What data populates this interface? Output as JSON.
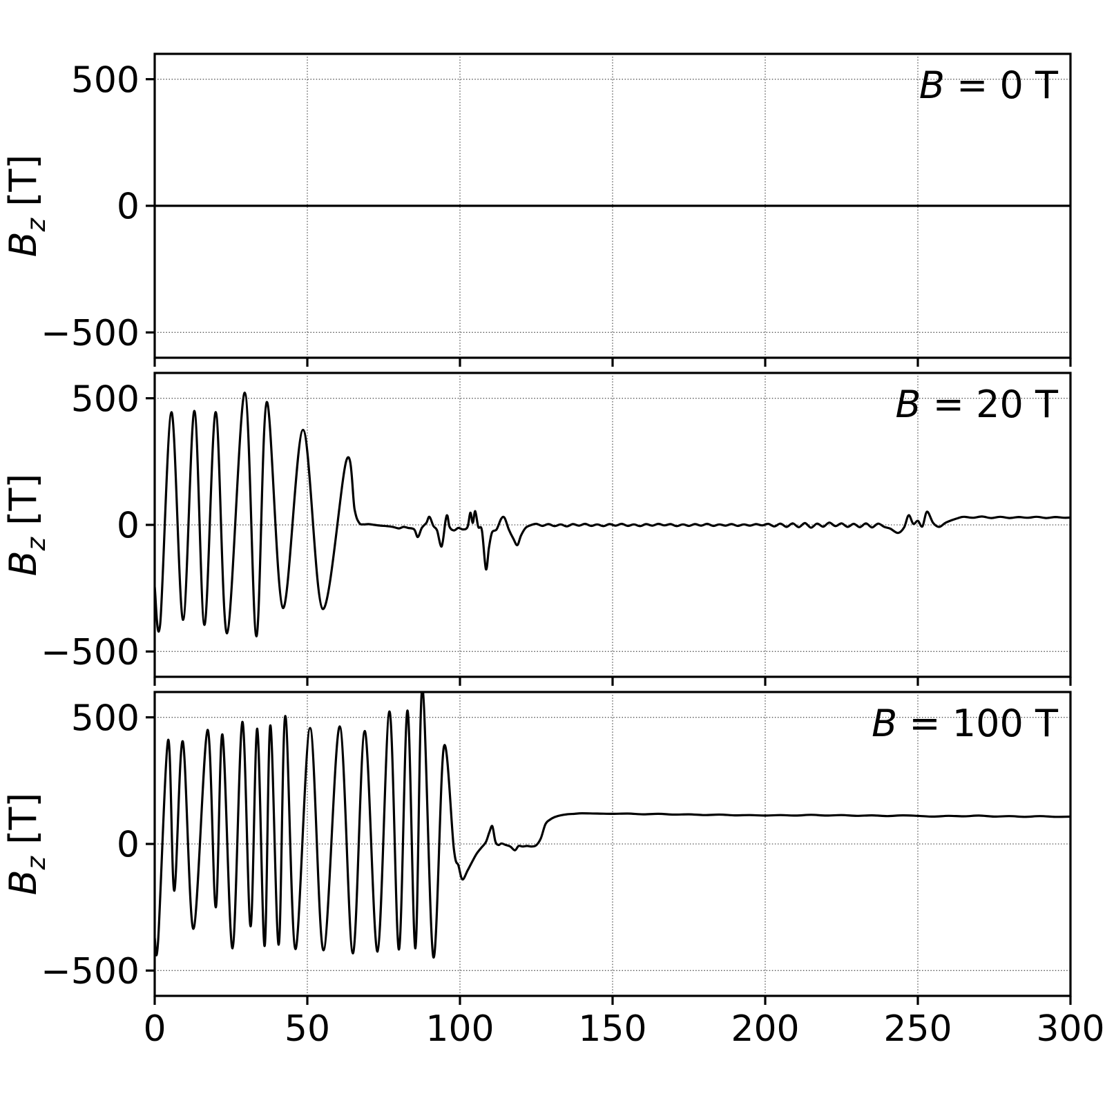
{
  "figure": {
    "background": "#ffffff",
    "line_color": "#000000",
    "grid_color": "#555555",
    "spine_color": "#000000"
  },
  "chart_data": {
    "type": "line",
    "layout": "3 vertically stacked subplots sharing one x-axis",
    "title": "",
    "xlabel": "",
    "x_axis": {
      "range": [
        0,
        300
      ],
      "ticks": [
        0,
        50,
        100,
        150,
        200,
        250,
        300
      ],
      "tick_labels": [
        "0",
        "50",
        "100",
        "150",
        "200",
        "250",
        "300"
      ]
    },
    "y_axis": {
      "range": [
        -600,
        600
      ],
      "ticks": [
        500,
        0,
        -500
      ],
      "tick_labels": [
        "500",
        "0",
        "−500"
      ],
      "label": "Bz [T]"
    },
    "grid": true,
    "legend": "none",
    "panels": [
      {
        "id": "b-0t",
        "annotation": {
          "symbol": "B",
          "rest": " = 0 T"
        },
        "ylabel": {
          "symbol": "B",
          "sub": "z",
          "rest": " [T]"
        },
        "series": {
          "name": "B = 0 T",
          "points": [
            [
              0,
              0
            ],
            [
              300,
              0
            ]
          ]
        }
      },
      {
        "id": "b-20t",
        "annotation": {
          "symbol": "B",
          "rest": " = 20 T"
        },
        "ylabel": {
          "symbol": "B",
          "sub": "z",
          "rest": " [T]"
        },
        "series": {
          "name": "B = 20 T",
          "points": [
            [
              0,
              -245
            ],
            [
              1.8,
              -390
            ],
            [
              5.5,
              445
            ],
            [
              9.3,
              -375
            ],
            [
              13,
              450
            ],
            [
              16.3,
              -395
            ],
            [
              20,
              445
            ],
            [
              23.7,
              -428
            ],
            [
              29.5,
              522
            ],
            [
              33.3,
              -440
            ],
            [
              36.7,
              485
            ],
            [
              42,
              -328
            ],
            [
              48.6,
              375
            ],
            [
              55,
              -332
            ],
            [
              62.8,
              255
            ],
            [
              65.5,
              60
            ],
            [
              67,
              8
            ],
            [
              68.5,
              2
            ],
            [
              70,
              3
            ],
            [
              72,
              0
            ],
            [
              74,
              -3
            ],
            [
              76,
              -5
            ],
            [
              78,
              -8
            ],
            [
              80,
              -14
            ],
            [
              81.5,
              -8
            ],
            [
              83,
              -12
            ],
            [
              85,
              -18
            ],
            [
              86.2,
              -48
            ],
            [
              87.5,
              -12
            ],
            [
              89,
              8
            ],
            [
              90,
              32
            ],
            [
              91.3,
              -4
            ],
            [
              92.5,
              -22
            ],
            [
              94,
              -85
            ],
            [
              95.3,
              18
            ],
            [
              95.9,
              36
            ],
            [
              96.6,
              -8
            ],
            [
              98,
              -22
            ],
            [
              99.5,
              -12
            ],
            [
              101,
              -18
            ],
            [
              102.5,
              -8
            ],
            [
              103.4,
              48
            ],
            [
              104.2,
              8
            ],
            [
              105,
              54
            ],
            [
              106,
              -8
            ],
            [
              107.2,
              -22
            ],
            [
              108.5,
              -175
            ],
            [
              109.5,
              -90
            ],
            [
              110.5,
              -30
            ],
            [
              112,
              -18
            ],
            [
              113.5,
              24
            ],
            [
              114.6,
              28
            ],
            [
              116,
              -18
            ],
            [
              117.5,
              -55
            ],
            [
              118.8,
              -80
            ],
            [
              120,
              -42
            ],
            [
              121.5,
              -12
            ],
            [
              123,
              -2
            ],
            [
              125,
              4
            ],
            [
              127,
              -4
            ],
            [
              129,
              3
            ],
            [
              131,
              -5
            ],
            [
              133,
              2
            ],
            [
              135,
              -6
            ],
            [
              137,
              3
            ],
            [
              139,
              -3
            ],
            [
              141,
              4
            ],
            [
              143,
              -4
            ],
            [
              145,
              2
            ],
            [
              147,
              -5
            ],
            [
              149,
              3
            ],
            [
              151,
              -3
            ],
            [
              153,
              4
            ],
            [
              155,
              -4
            ],
            [
              157,
              2
            ],
            [
              159,
              -5
            ],
            [
              161,
              3
            ],
            [
              163,
              -3
            ],
            [
              165,
              4
            ],
            [
              167,
              -2
            ],
            [
              169,
              3
            ],
            [
              171,
              -5
            ],
            [
              173,
              2
            ],
            [
              175,
              -4
            ],
            [
              177,
              3
            ],
            [
              179,
              -3
            ],
            [
              181,
              4
            ],
            [
              183,
              -4
            ],
            [
              185,
              2
            ],
            [
              187,
              -3
            ],
            [
              189,
              3
            ],
            [
              191,
              -4
            ],
            [
              193,
              2
            ],
            [
              195,
              -3
            ],
            [
              197,
              3
            ],
            [
              199,
              -2
            ],
            [
              201,
              4
            ],
            [
              203,
              -6
            ],
            [
              205,
              5
            ],
            [
              207,
              -8
            ],
            [
              209,
              6
            ],
            [
              211,
              -9
            ],
            [
              213,
              7
            ],
            [
              215,
              -11
            ],
            [
              217,
              5
            ],
            [
              219,
              -7
            ],
            [
              221,
              9
            ],
            [
              223,
              -5
            ],
            [
              225,
              6
            ],
            [
              227,
              -8
            ],
            [
              229,
              4
            ],
            [
              231,
              -9
            ],
            [
              233,
              6
            ],
            [
              235,
              -10
            ],
            [
              237,
              5
            ],
            [
              239,
              -8
            ],
            [
              241,
              -15
            ],
            [
              243.5,
              -32
            ],
            [
              245.5,
              -10
            ],
            [
              247,
              38
            ],
            [
              248.5,
              4
            ],
            [
              250,
              16
            ],
            [
              251.5,
              -6
            ],
            [
              253,
              52
            ],
            [
              255,
              8
            ],
            [
              257,
              -8
            ],
            [
              259,
              8
            ],
            [
              261,
              18
            ],
            [
              263,
              26
            ],
            [
              265,
              32
            ],
            [
              268,
              28
            ],
            [
              271,
              33
            ],
            [
              274,
              27
            ],
            [
              277,
              32
            ],
            [
              280,
              27
            ],
            [
              283,
              31
            ],
            [
              286,
              28
            ],
            [
              289,
              32
            ],
            [
              292,
              27
            ],
            [
              295,
              31
            ],
            [
              298,
              28
            ],
            [
              300,
              29
            ]
          ]
        }
      },
      {
        "id": "b-100t",
        "annotation": {
          "symbol": "B",
          "rest": " = 100 T"
        },
        "ylabel": {
          "symbol": "B",
          "sub": "z",
          "rest": " [T]"
        },
        "series": {
          "name": "B = 100 T",
          "points": [
            [
              0,
              -370
            ],
            [
              1.1,
              -385
            ],
            [
              4.4,
              410
            ],
            [
              6.4,
              -185
            ],
            [
              9.2,
              405
            ],
            [
              12.7,
              -335
            ],
            [
              17.3,
              450
            ],
            [
              20,
              -250
            ],
            [
              22.2,
              432
            ],
            [
              25.5,
              -412
            ],
            [
              28.7,
              482
            ],
            [
              31.4,
              -325
            ],
            [
              33.6,
              455
            ],
            [
              36,
              -403
            ],
            [
              37.9,
              468
            ],
            [
              40.6,
              -398
            ],
            [
              42.8,
              505
            ],
            [
              46.1,
              -415
            ],
            [
              50.9,
              458
            ],
            [
              55.3,
              -420
            ],
            [
              60.6,
              464
            ],
            [
              64.9,
              -432
            ],
            [
              68.8,
              446
            ],
            [
              73,
              -425
            ],
            [
              76.9,
              523
            ],
            [
              80,
              -417
            ],
            [
              82.8,
              527
            ],
            [
              85.4,
              -412
            ],
            [
              87.7,
              615
            ],
            [
              91.3,
              -447
            ],
            [
              94.7,
              382
            ],
            [
              98,
              -20
            ],
            [
              99.5,
              -85
            ],
            [
              100.8,
              -140
            ],
            [
              102.5,
              -105
            ],
            [
              104,
              -70
            ],
            [
              105.5,
              -38
            ],
            [
              107,
              -15
            ],
            [
              108.5,
              8
            ],
            [
              109.6,
              45
            ],
            [
              110.6,
              70
            ],
            [
              111.6,
              10
            ],
            [
              112.6,
              -4
            ],
            [
              113.6,
              2
            ],
            [
              115,
              -4
            ],
            [
              116.5,
              -10
            ],
            [
              118,
              -25
            ],
            [
              119.2,
              -8
            ],
            [
              120.5,
              -10
            ],
            [
              122,
              -8
            ],
            [
              123.5,
              -10
            ],
            [
              125,
              -5
            ],
            [
              126.5,
              22
            ],
            [
              128,
              78
            ],
            [
              129.5,
              96
            ],
            [
              131,
              106
            ],
            [
              133,
              113
            ],
            [
              135,
              117
            ],
            [
              137.5,
              119
            ],
            [
              140,
              121
            ],
            [
              145,
              120
            ],
            [
              150,
              119
            ],
            [
              155,
              120
            ],
            [
              160,
              117
            ],
            [
              165,
              119
            ],
            [
              170,
              116
            ],
            [
              175,
              117
            ],
            [
              180,
              114
            ],
            [
              185,
              116
            ],
            [
              190,
              113
            ],
            [
              195,
              114
            ],
            [
              200,
              112
            ],
            [
              205,
              114
            ],
            [
              210,
              112
            ],
            [
              215,
              115
            ],
            [
              220,
              112
            ],
            [
              225,
              114
            ],
            [
              230,
              111
            ],
            [
              235,
              113
            ],
            [
              240,
              110
            ],
            [
              245,
              113
            ],
            [
              250,
              111
            ],
            [
              255,
              108
            ],
            [
              260,
              111
            ],
            [
              265,
              109
            ],
            [
              270,
              112
            ],
            [
              275,
              108
            ],
            [
              280,
              110
            ],
            [
              285,
              107
            ],
            [
              290,
              110
            ],
            [
              295,
              107
            ],
            [
              300,
              108
            ]
          ]
        }
      }
    ]
  }
}
